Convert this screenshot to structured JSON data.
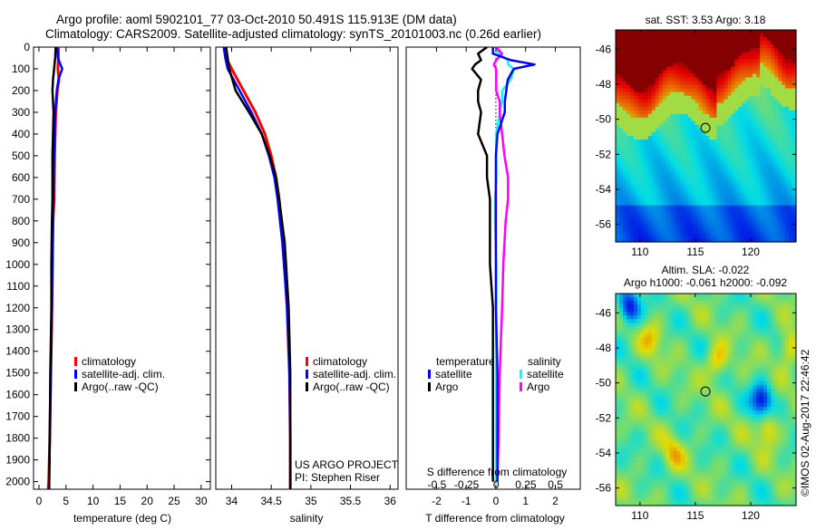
{
  "title_line1": "Argo profile: aoml 5902101_77 03-Oct-2010 50.491S 115.913E (DM data)",
  "title_line2": "Climatology: CARS2009. Satellite-adjusted climatology: synTS_20101003.nc (0.26d earlier)",
  "colors": {
    "climatology": "#ff0000",
    "satellite": "#0000ff",
    "argo": "#000000",
    "s_satellite": "#00ffff",
    "s_argo": "#ff00ff"
  },
  "chart_data": [
    {
      "type": "line",
      "name": "temperature-profile",
      "xlabel": "temperature (deg C)",
      "ylabel": "",
      "xlim": [
        -1,
        31.7
      ],
      "ylim": [
        2035,
        0
      ],
      "xticks": [
        0,
        5,
        10,
        15,
        20,
        25,
        30
      ],
      "yticks": [
        0,
        100,
        200,
        300,
        400,
        500,
        600,
        700,
        800,
        900,
        1000,
        1100,
        1200,
        1300,
        1400,
        1500,
        1600,
        1700,
        1800,
        1900,
        2000
      ],
      "legend": [
        "climatology",
        "satellite-adj. clim.",
        "Argo(..raw -QC)"
      ],
      "depth": [
        0,
        50,
        100,
        150,
        200,
        300,
        400,
        500,
        700,
        800,
        1000,
        1200,
        1500,
        1800,
        2000,
        2035
      ],
      "series": [
        {
          "name": "climatology",
          "values": [
            3.6,
            3.6,
            3.5,
            3.7,
            3.4,
            3.1,
            3.0,
            2.9,
            2.8,
            2.6,
            2.5,
            2.4,
            2.2,
            2.0,
            1.8,
            1.7
          ]
        },
        {
          "name": "satellite-adj. clim.",
          "values": [
            3.4,
            3.5,
            4.3,
            3.6,
            3.3,
            3.0,
            2.9,
            2.8,
            2.7,
            2.6,
            2.5,
            2.4,
            2.2,
            2.0,
            1.9,
            1.8
          ]
        },
        {
          "name": "Argo(..raw -QC)",
          "values": [
            3.1,
            3.0,
            2.8,
            2.6,
            2.5,
            2.7,
            2.6,
            2.5,
            2.5,
            2.4,
            2.3,
            2.3,
            2.1,
            2.0,
            1.9,
            1.9
          ]
        }
      ]
    },
    {
      "type": "line",
      "name": "salinity-profile",
      "xlabel": "salinity",
      "xlim": [
        33.8,
        36.1
      ],
      "ylim": [
        2035,
        0
      ],
      "xticks": [
        34,
        34.5,
        35,
        35.5,
        36
      ],
      "legend": [
        "climatology",
        "satellite-adj. clim.",
        "Argo(..raw -QC)"
      ],
      "annotation": [
        "US ARGO PROJECT",
        "PI: Stephen Riser"
      ],
      "depth": [
        0,
        50,
        100,
        200,
        300,
        400,
        500,
        600,
        700,
        900,
        1200,
        1500,
        1800,
        2000,
        2035
      ],
      "series": [
        {
          "name": "climatology",
          "values": [
            33.92,
            33.93,
            34.0,
            34.15,
            34.3,
            34.42,
            34.5,
            34.56,
            34.6,
            34.65,
            34.7,
            34.73,
            34.74,
            34.74,
            34.74
          ]
        },
        {
          "name": "satellite-adj. clim.",
          "values": [
            33.9,
            33.92,
            33.95,
            34.1,
            34.25,
            34.38,
            34.47,
            34.54,
            34.58,
            34.64,
            34.7,
            34.73,
            34.74,
            34.74,
            34.74
          ]
        },
        {
          "name": "Argo(..raw -QC)",
          "values": [
            33.93,
            33.95,
            33.97,
            34.05,
            34.22,
            34.38,
            34.48,
            34.56,
            34.6,
            34.67,
            34.72,
            34.74,
            34.74,
            34.74,
            34.74
          ]
        }
      ]
    },
    {
      "type": "line",
      "name": "difference-profile",
      "xlabel": "T difference from climatology",
      "x2label": "S difference from climatology",
      "xlim": [
        -3.02,
        2.84
      ],
      "x2lim": [
        -0.76,
        0.71
      ],
      "ylim": [
        2035,
        0
      ],
      "xticks": [
        -2,
        -1,
        0,
        1,
        2
      ],
      "x2ticks": [
        -0.5,
        -0.25,
        0,
        0.25,
        0.5
      ],
      "legend_titles": [
        "temperature",
        "salinity"
      ],
      "legend": [
        "satellite",
        "Argo",
        "satellite",
        "Argo"
      ],
      "depth": [
        0,
        30,
        60,
        80,
        100,
        150,
        200,
        250,
        300,
        400,
        500,
        600,
        700,
        800,
        1000,
        1200,
        1500,
        1800,
        2000
      ],
      "series": [
        {
          "name": "T satellite",
          "axis": "T",
          "values": [
            -0.1,
            -0.1,
            0.5,
            1.3,
            0.6,
            0.4,
            0.35,
            0.3,
            0.3,
            0.05,
            0.0,
            0.0,
            0.0,
            0.0,
            0.0,
            0.0,
            0.05,
            0.05,
            0.05
          ]
        },
        {
          "name": "T Argo",
          "axis": "T",
          "values": [
            -0.3,
            -0.6,
            -0.5,
            -0.7,
            -0.8,
            -0.5,
            -0.6,
            -0.6,
            -0.5,
            -0.6,
            -0.3,
            -0.3,
            -0.2,
            -0.2,
            -0.2,
            -0.1,
            -0.1,
            -0.1,
            -0.1
          ]
        },
        {
          "name": "S satellite",
          "axis": "S",
          "values": [
            0.0,
            0.02,
            0.1,
            0.1,
            0.15,
            0.12,
            0.05,
            0.05,
            0.03,
            0.0,
            0.0,
            0.0,
            -0.01,
            -0.01,
            0.0,
            0.0,
            0.0,
            0.0,
            0.0
          ]
        },
        {
          "name": "S Argo",
          "axis": "S",
          "values": [
            0.0,
            0.05,
            0.0,
            -0.02,
            0.0,
            0.0,
            0.0,
            0.03,
            0.03,
            0.05,
            0.07,
            0.1,
            0.1,
            0.08,
            0.06,
            0.05,
            0.03,
            0.02,
            0.01
          ]
        }
      ]
    },
    {
      "type": "heatmap",
      "name": "sst-map",
      "title": "sat. SST: 3.53 Argo: 3.18",
      "xlim": [
        107.8,
        124.1
      ],
      "ylim": [
        -57.0,
        -44.9
      ],
      "xticks": [
        110,
        115,
        120
      ],
      "yticks": [
        -46,
        -48,
        -50,
        -52,
        -54,
        -56
      ],
      "profile_location": [
        115.913,
        -50.491
      ]
    },
    {
      "type": "heatmap",
      "name": "sla-map",
      "title_line1": "Altim. SLA: -0.022",
      "title_line2": "Argo h1000: -0.061 h2000: -0.092",
      "xlim": [
        107.8,
        124.1
      ],
      "ylim": [
        -57.0,
        -44.9
      ],
      "xticks": [
        110,
        115,
        120
      ],
      "yticks": [
        -46,
        -48,
        -50,
        -52,
        -54,
        -56
      ],
      "profile_location": [
        115.913,
        -50.491
      ],
      "credit": "©IMOS 02-Aug-2017 22:46:42"
    }
  ]
}
